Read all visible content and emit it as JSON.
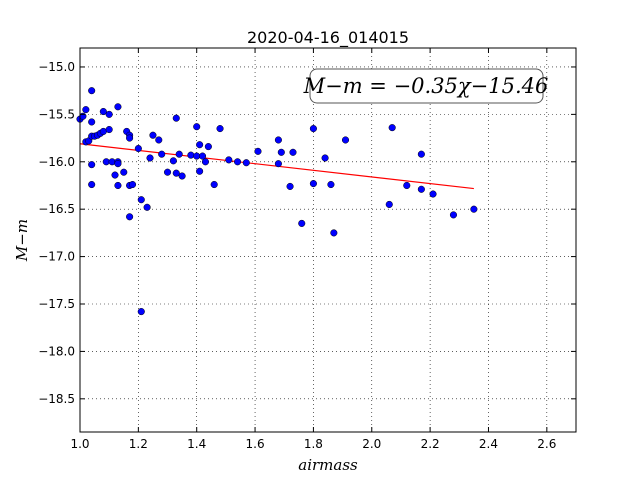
{
  "chart_data": {
    "type": "scatter",
    "title": "2020-04-16_014015",
    "xlabel": "airmass",
    "ylabel": "M−m",
    "xlim": [
      1.0,
      2.7
    ],
    "ylim": [
      -18.85,
      -14.8
    ],
    "x_ticks": [
      1.0,
      1.2,
      1.4,
      1.6,
      1.8,
      2.0,
      2.2,
      2.4,
      2.6
    ],
    "x_tick_labels": [
      "1.0",
      "1.2",
      "1.4",
      "1.6",
      "1.8",
      "2.0",
      "2.2",
      "2.4",
      "2.6"
    ],
    "y_ticks": [
      -15.0,
      -15.5,
      -16.0,
      -16.5,
      -17.0,
      -17.5,
      -18.0,
      -18.5
    ],
    "y_tick_labels": [
      "−15.0",
      "−15.5",
      "−16.0",
      "−16.5",
      "−17.0",
      "−17.5",
      "−18.0",
      "−18.5"
    ],
    "grid": true,
    "annotation": "M−m = −0.35χ−15.46",
    "annotation_position": "top-right",
    "fit_line": {
      "slope": -0.35,
      "intercept": -15.46,
      "x_range": [
        1.0,
        2.35
      ],
      "color": "#ff0000"
    },
    "point_color": "#0000ff",
    "points": [
      [
        1.0,
        -15.55
      ],
      [
        1.01,
        -15.52
      ],
      [
        1.02,
        -15.45
      ],
      [
        1.02,
        -15.79
      ],
      [
        1.03,
        -15.78
      ],
      [
        1.04,
        -15.25
      ],
      [
        1.04,
        -15.58
      ],
      [
        1.04,
        -15.73
      ],
      [
        1.04,
        -16.03
      ],
      [
        1.04,
        -16.24
      ],
      [
        1.05,
        -15.73
      ],
      [
        1.06,
        -15.72
      ],
      [
        1.07,
        -15.7
      ],
      [
        1.08,
        -15.47
      ],
      [
        1.08,
        -15.68
      ],
      [
        1.09,
        -16.0
      ],
      [
        1.1,
        -15.66
      ],
      [
        1.1,
        -15.5
      ],
      [
        1.11,
        -16.0
      ],
      [
        1.12,
        -16.14
      ],
      [
        1.13,
        -15.42
      ],
      [
        1.13,
        -16.0
      ],
      [
        1.13,
        -16.02
      ],
      [
        1.13,
        -16.25
      ],
      [
        1.15,
        -16.11
      ],
      [
        1.16,
        -15.68
      ],
      [
        1.17,
        -15.72
      ],
      [
        1.17,
        -15.75
      ],
      [
        1.17,
        -16.25
      ],
      [
        1.17,
        -16.58
      ],
      [
        1.18,
        -16.24
      ],
      [
        1.2,
        -15.86
      ],
      [
        1.21,
        -16.4
      ],
      [
        1.21,
        -17.58
      ],
      [
        1.23,
        -16.48
      ],
      [
        1.24,
        -15.96
      ],
      [
        1.25,
        -15.72
      ],
      [
        1.27,
        -15.77
      ],
      [
        1.28,
        -15.92
      ],
      [
        1.3,
        -16.11
      ],
      [
        1.32,
        -15.99
      ],
      [
        1.33,
        -15.54
      ],
      [
        1.33,
        -16.12
      ],
      [
        1.34,
        -15.92
      ],
      [
        1.35,
        -16.15
      ],
      [
        1.38,
        -15.93
      ],
      [
        1.4,
        -15.94
      ],
      [
        1.4,
        -15.63
      ],
      [
        1.41,
        -15.82
      ],
      [
        1.41,
        -16.1
      ],
      [
        1.42,
        -15.94
      ],
      [
        1.43,
        -16.0
      ],
      [
        1.44,
        -15.84
      ],
      [
        1.46,
        -16.24
      ],
      [
        1.48,
        -15.65
      ],
      [
        1.51,
        -15.98
      ],
      [
        1.54,
        -16.0
      ],
      [
        1.57,
        -16.01
      ],
      [
        1.61,
        -15.89
      ],
      [
        1.68,
        -15.77
      ],
      [
        1.68,
        -16.02
      ],
      [
        1.69,
        -15.9
      ],
      [
        1.72,
        -16.26
      ],
      [
        1.73,
        -15.9
      ],
      [
        1.76,
        -16.65
      ],
      [
        1.8,
        -15.65
      ],
      [
        1.8,
        -16.23
      ],
      [
        1.84,
        -15.96
      ],
      [
        1.86,
        -16.24
      ],
      [
        1.87,
        -16.75
      ],
      [
        1.91,
        -15.77
      ],
      [
        2.06,
        -16.45
      ],
      [
        2.07,
        -15.64
      ],
      [
        2.12,
        -16.25
      ],
      [
        2.17,
        -15.92
      ],
      [
        2.17,
        -16.29
      ],
      [
        2.21,
        -16.34
      ],
      [
        2.28,
        -16.56
      ],
      [
        2.35,
        -16.5
      ]
    ]
  }
}
